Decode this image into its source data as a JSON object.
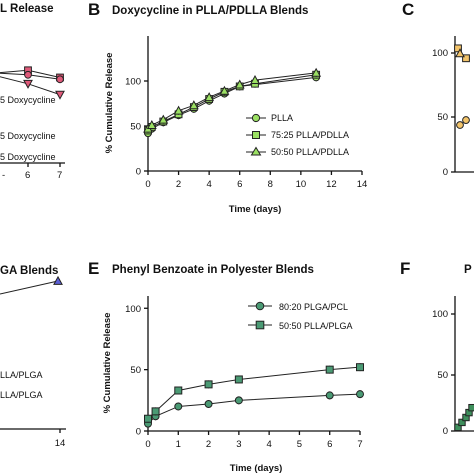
{
  "panels": {
    "A": {
      "label": "",
      "title": "L Release",
      "ticks_x": [
        "7"
      ],
      "ticks_x_extra": [
        "6"
      ],
      "ticks_x_partial": "-",
      "legend": [
        "5 Doxycycline",
        "5 Doxycycline",
        "5 Doxycycline"
      ]
    },
    "C": {
      "label": "C",
      "ticks_y": [
        "0",
        "50",
        "100"
      ]
    },
    "D": {
      "title": "GA Blends",
      "ticks_x": [
        "14"
      ],
      "legend": [
        "LLA/PLGA",
        "LLA/PLGA"
      ]
    },
    "F": {
      "label": "F",
      "title": "P",
      "ticks_y": [
        "0",
        "50",
        "100"
      ]
    }
  },
  "chart_data": [
    {
      "type": "line",
      "id": "B",
      "label": "B",
      "title": "Doxycycline in PLLA/PDLLA Blends",
      "xlabel": "Time (days)",
      "ylabel": "% Cumulative Release",
      "xlim": [
        0,
        14
      ],
      "ylim": [
        0,
        150
      ],
      "xticks": [
        "0",
        "2",
        "4",
        "6",
        "8",
        "10",
        "12",
        "14"
      ],
      "yticks": [
        "0",
        "50",
        "100"
      ],
      "series": [
        {
          "name": "PLLA",
          "marker": "circle",
          "color": "#9be063",
          "x": [
            0,
            0.25,
            1,
            2,
            3,
            4,
            5,
            6,
            11
          ],
          "y": [
            42,
            47,
            54,
            62,
            69,
            78,
            86,
            94,
            104
          ]
        },
        {
          "name": "75:25 PLLA/PDLLA",
          "marker": "square",
          "color": "#9be063",
          "x": [
            0,
            0.25,
            1,
            2,
            3,
            4,
            5,
            6,
            7,
            11
          ],
          "y": [
            45,
            49,
            55,
            63,
            71,
            80,
            88,
            94,
            97,
            107
          ]
        },
        {
          "name": "50:50 PLLA/PDLLA",
          "marker": "triangle",
          "color": "#9be063",
          "x": [
            0,
            0.25,
            1,
            2,
            3,
            4,
            5,
            6,
            7,
            11
          ],
          "y": [
            47,
            51,
            57,
            67,
            73,
            82,
            89,
            96,
            101,
            109
          ]
        }
      ]
    },
    {
      "type": "line",
      "id": "E",
      "label": "E",
      "title": "Phenyl Benzoate in Polyester Blends",
      "xlabel": "Time (days)",
      "ylabel": "% Cumulative Release",
      "xlim": [
        0,
        7
      ],
      "ylim": [
        0,
        110
      ],
      "xticks": [
        "0",
        "1",
        "2",
        "3",
        "4",
        "5",
        "6",
        "7"
      ],
      "yticks": [
        "0",
        "50",
        "100"
      ],
      "series": [
        {
          "name": "80:20 PLGA/PCL",
          "marker": "circle",
          "color": "#4a9a74",
          "x": [
            0,
            0.25,
            1,
            2,
            3,
            6,
            7
          ],
          "y": [
            6,
            12,
            20,
            22,
            25,
            29,
            30
          ]
        },
        {
          "name": "50:50 PLLA/PLGA",
          "marker": "square",
          "color": "#4a9a74",
          "x": [
            0,
            0.25,
            1,
            2,
            3,
            6,
            7
          ],
          "y": [
            10,
            16,
            33,
            38,
            42,
            50,
            52
          ]
        }
      ]
    },
    {
      "type": "line",
      "id": "A-partial",
      "x": [
        5,
        6,
        7
      ],
      "series": [
        {
          "marker": "square",
          "color": "#e05a7a",
          "y": [
            100,
            103,
            95
          ]
        },
        {
          "marker": "circle",
          "color": "#e05a7a",
          "y": [
            100,
            98,
            93
          ]
        },
        {
          "marker": "triangle-down",
          "color": "#e05a7a",
          "y": [
            97,
            88,
            76
          ]
        }
      ]
    },
    {
      "type": "scatter",
      "id": "C-partial",
      "points": [
        {
          "marker": "square",
          "color": "#f3c46a",
          "y": 100
        },
        {
          "marker": "square",
          "color": "#f3c46a",
          "y": 92
        },
        {
          "marker": "triangle",
          "color": "#f3c46a",
          "y": 96
        },
        {
          "marker": "circle",
          "color": "#f3c46a",
          "y": 38
        },
        {
          "marker": "circle",
          "color": "#f3c46a",
          "y": 42
        }
      ]
    },
    {
      "type": "line",
      "id": "D-partial",
      "series": [
        {
          "marker": "triangle",
          "color": "#5b5fd6",
          "x": [
            14
          ],
          "y": [
            100
          ]
        }
      ]
    },
    {
      "type": "scatter",
      "id": "F-partial",
      "points": [
        {
          "y": 3
        },
        {
          "y": 7
        },
        {
          "y": 11
        },
        {
          "y": 15
        },
        {
          "y": 19
        }
      ],
      "color": "#3e8f5c"
    }
  ]
}
